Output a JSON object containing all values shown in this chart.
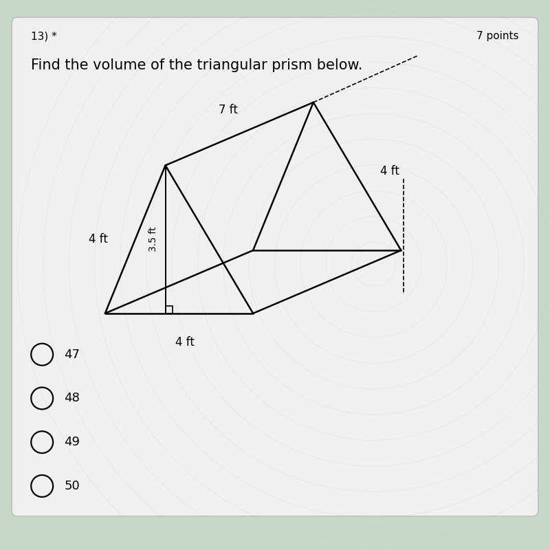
{
  "bg_color": "#c8d8c8",
  "card_color": "#f0f0f0",
  "question_number": "13) *",
  "points_text": "7 points",
  "question_text": "Find the volume of the triangular prism below.",
  "dimension_7ft": "7 ft",
  "dimension_4ft_top": "4 ft",
  "dimension_4ft_left": "4 ft",
  "dimension_35ft": "3.5 ft",
  "dimension_4ft_bottom": "4 ft",
  "options": [
    "47",
    "48",
    "49",
    "50"
  ],
  "title_fontsize": 15,
  "label_fontsize": 12,
  "option_fontsize": 13
}
